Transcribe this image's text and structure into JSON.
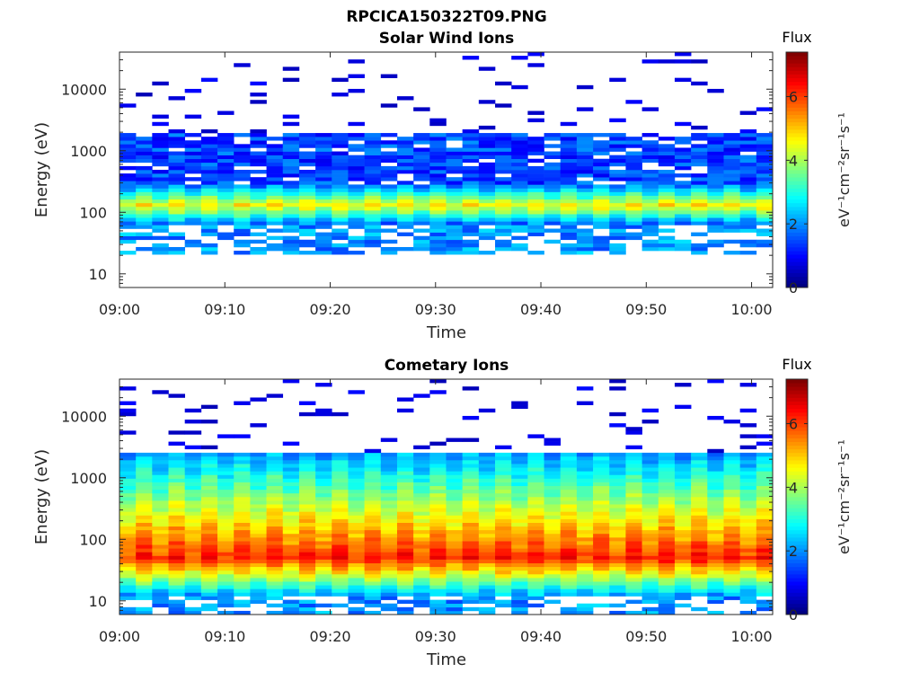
{
  "figure": {
    "title": "RPCICA150322T09.PNG"
  },
  "chart_data": [
    {
      "type": "heatmap",
      "title": "Solar Wind Ions",
      "xlabel": "Time",
      "ylabel": "Energy (eV)",
      "x_ticks": [
        "09:00",
        "09:10",
        "09:20",
        "09:30",
        "09:40",
        "09:50",
        "10:00"
      ],
      "x_range": [
        "09:00",
        "10:02"
      ],
      "y_scale": "log",
      "y_ticks": [
        "10",
        "100",
        "1000",
        "10000"
      ],
      "ylim": [
        6,
        40000
      ],
      "colorbar": {
        "label": "eV⁻¹cm⁻²sr⁻¹s⁻¹",
        "title": "Flux",
        "ticks": [
          "0",
          "2",
          "4",
          "6"
        ],
        "range": [
          0,
          7.4
        ],
        "colormap": "jet"
      },
      "description_of_data": "Log-flux spectrogram: main ion band ~60-300 eV (values ~3-5), hot tail to ~2000 eV (values ~1-2.5), sporadic low counts above 2000 eV",
      "band": {
        "low_edge_eV": 60,
        "peak_eV": 130,
        "high_edge_eV": 300,
        "peak_value": 4.6,
        "tail_top_eV": 2000,
        "tail_value": 1.4
      }
    },
    {
      "type": "heatmap",
      "title": "Cometary Ions",
      "xlabel": "Time",
      "ylabel": "Energy (eV)",
      "x_ticks": [
        "09:00",
        "09:10",
        "09:20",
        "09:30",
        "09:40",
        "09:50",
        "10:00"
      ],
      "x_range": [
        "09:00",
        "10:02"
      ],
      "y_scale": "log",
      "y_ticks": [
        "10",
        "100",
        "1000",
        "10000"
      ],
      "ylim": [
        6,
        40000
      ],
      "colorbar": {
        "label": "eV⁻¹cm⁻²sr⁻¹s⁻¹",
        "title": "Flux",
        "ticks": [
          "0",
          "2",
          "4",
          "6"
        ],
        "range": [
          0,
          7.4
        ],
        "colormap": "jet"
      },
      "description_of_data": "Log-flux spectrogram: broad band ~10-2500 eV peaking near 30-100 eV with values up to ~6.5",
      "band": {
        "low_edge_eV": 12,
        "peak_eV": 50,
        "high_edge_eV": 2500,
        "peak_value": 6.2,
        "tail_top_eV": 2500,
        "tail_value": 2.0
      }
    }
  ]
}
